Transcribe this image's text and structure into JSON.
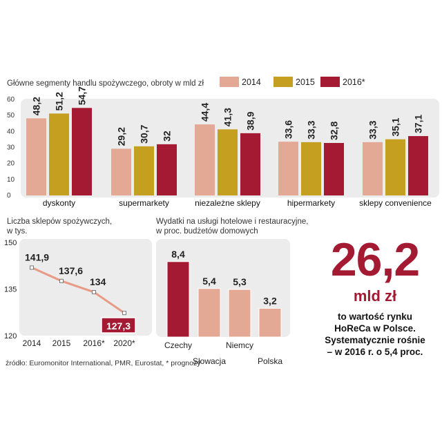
{
  "colors": {
    "c2014": "#e3a994",
    "c2015": "#c5a020",
    "c2016": "#a31a32",
    "panel": "#ececec",
    "accent": "#a31a32",
    "line": "#e89a85"
  },
  "chart_data": [
    {
      "type": "bar",
      "title": "Główne segmenty handlu spożywczego, obroty w mld zł",
      "categories": [
        "dyskonty",
        "supermarkety",
        "niezależne sklepy",
        "hipermarkety",
        "sklepy convenience"
      ],
      "ylim": [
        0,
        60
      ],
      "yticks": [
        "0",
        "10",
        "20",
        "30",
        "40",
        "50",
        "60"
      ],
      "legend_position": "top-right",
      "series": [
        {
          "name": "2014",
          "values": [
            48.2,
            29.2,
            44.4,
            33.6,
            33.3
          ],
          "labels": [
            "48,2",
            "29,2",
            "44,4",
            "33,6",
            "33,3"
          ]
        },
        {
          "name": "2015",
          "values": [
            51.2,
            30.7,
            41.3,
            33.3,
            35.1
          ],
          "labels": [
            "51,2",
            "30,7",
            "41,3",
            "33,3",
            "35,1"
          ]
        },
        {
          "name": "2016*",
          "values": [
            54.7,
            32,
            38.9,
            32.8,
            37.1
          ],
          "labels": [
            "54,7",
            "32",
            "38,9",
            "32,8",
            "37,1"
          ]
        }
      ]
    },
    {
      "type": "line",
      "title_lines": [
        "Liczba sklepów spożywczych,",
        "w tys."
      ],
      "x": [
        "2014",
        "2015",
        "2016*",
        "2020*"
      ],
      "values": [
        141.9,
        137.6,
        134,
        127.3
      ],
      "labels": [
        "141,9",
        "137,6",
        "134",
        "127,3"
      ],
      "ylim": [
        120,
        150
      ],
      "yticks": [
        "120",
        "135",
        "150"
      ]
    },
    {
      "type": "bar",
      "title_lines": [
        "Wydatki na usługi hotelowe i restauracyjne,",
        "w proc. budżetów domowych"
      ],
      "categories": [
        "Czechy",
        "Słowacja",
        "Niemcy",
        "Polska"
      ],
      "values": [
        8.4,
        5.4,
        5.3,
        3.2
      ],
      "labels": [
        "8,4",
        "5,4",
        "5,3",
        "3,2"
      ],
      "ylim": [
        0,
        10
      ]
    }
  ],
  "highlight": {
    "value": "26,2",
    "unit": "mld zł",
    "description": [
      "to wartość rynku",
      "HoReCa w Polsce.",
      "Systematycznie rośnie",
      "– w 2016 r. o 5,4 proc."
    ]
  },
  "source": "źródło: Euromonitor International, PMR, Eurostat, * prognozy"
}
